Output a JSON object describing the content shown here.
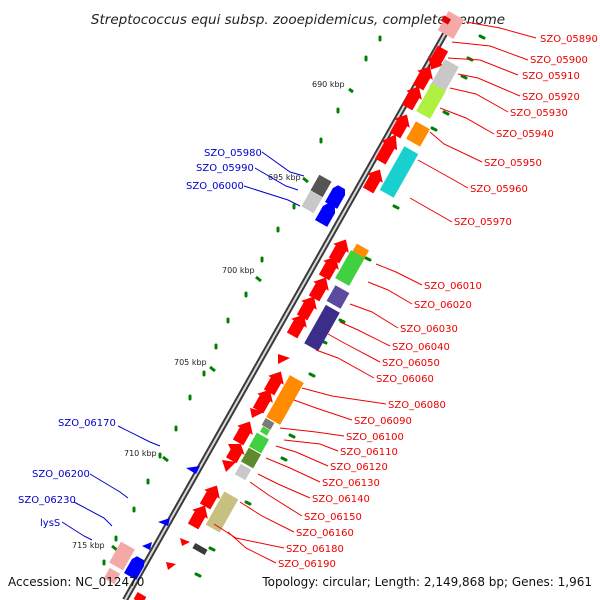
{
  "title": "Streptococcus equi subsp. zooepidemicus, complete genome",
  "footer": {
    "accession": "Accession: NC_012470",
    "summary": "Topology: circular; Length: 2,149,868 bp; Genes: 1,961"
  },
  "colors": {
    "backbone": "#8a8a8a",
    "left_labels": "#0000cc",
    "right_labels": "#ee0000",
    "tick_marks": "#008000",
    "forward_gene": "#ff0000",
    "reverse_gene": "#0000ff"
  },
  "scale_ticks": [
    "690 kbp",
    "695 kbp",
    "700 kbp",
    "705 kbp",
    "710 kbp",
    "715 kbp"
  ],
  "left_gene_labels": [
    "SZO_05980",
    "SZO_05990",
    "SZO_06000",
    "SZO_06170",
    "SZO_06200",
    "SZO_06230",
    "lysS"
  ],
  "right_gene_labels": [
    "SZO_05890",
    "SZO_05900",
    "SZO_05910",
    "SZO_05920",
    "SZO_05930",
    "SZO_05940",
    "SZO_05950",
    "SZO_05960",
    "SZO_05970",
    "SZO_06010",
    "SZO_06020",
    "SZO_06030",
    "SZO_06040",
    "SZO_06050",
    "SZO_06060",
    "SZO_06080",
    "SZO_06090",
    "SZO_06100",
    "SZO_06110",
    "SZO_06120",
    "SZO_06130",
    "SZO_06140",
    "SZO_06150",
    "SZO_06160",
    "SZO_06180",
    "SZO_06190"
  ]
}
